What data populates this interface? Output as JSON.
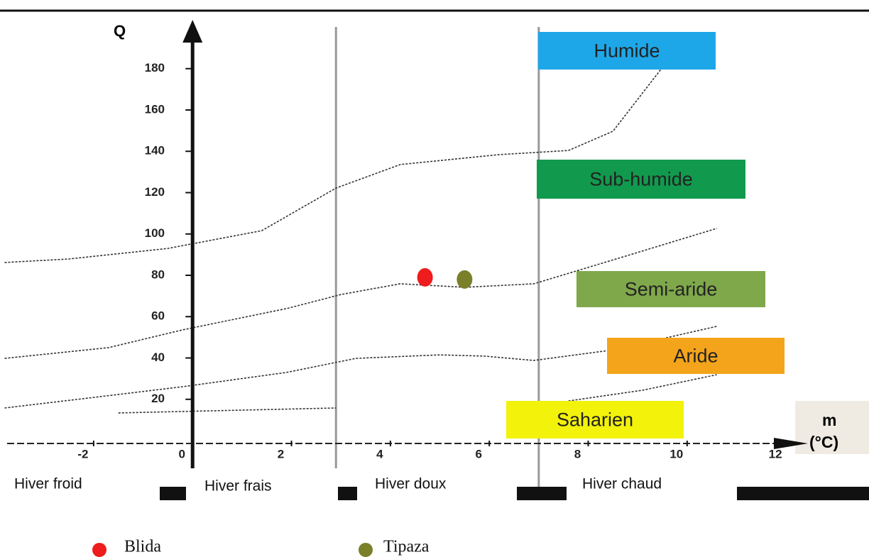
{
  "chart_data": {
    "type": "scatter",
    "ylabel": "Q",
    "xlabel": "m",
    "xunit": "(°C)",
    "xlim": [
      -3.75,
      12.4
    ],
    "ylim": [
      0,
      200
    ],
    "xticks": [
      -2,
      0,
      2,
      4,
      6,
      8,
      10,
      12
    ],
    "yticks": [
      20,
      40,
      60,
      80,
      100,
      120,
      140,
      160,
      180
    ],
    "series": [
      {
        "name": "Blida",
        "color": "#ee1c1c",
        "x": [
          4.7
        ],
        "values": [
          79
        ]
      },
      {
        "name": "Tipaza",
        "color": "#7a7f2a",
        "x": [
          5.5
        ],
        "values": [
          78
        ]
      }
    ],
    "boundaries": [
      {
        "x": [
          -3.8,
          -2.5,
          -0.5,
          1.4,
          2.9,
          4.2,
          6.2,
          7.6,
          8.5,
          9.5
        ],
        "y": [
          86.2,
          87.9,
          93.0,
          101.6,
          122.2,
          133.6,
          138.4,
          140.4,
          149.7,
          180.6
        ]
      },
      {
        "x": [
          -3.8,
          -1.7,
          -0.2,
          1.9,
          3.0,
          4.2,
          5.5,
          6.9,
          8.8,
          10.6
        ],
        "y": [
          39.8,
          45.0,
          53.6,
          63.9,
          70.7,
          75.9,
          74.2,
          75.9,
          89.6,
          102.7
        ]
      },
      {
        "x": [
          -3.8,
          -2.0,
          -0.2,
          1.9,
          3.3,
          5.0,
          5.9,
          6.9,
          8.5,
          10.6
        ],
        "y": [
          15.8,
          20.9,
          26.1,
          33.0,
          39.8,
          41.5,
          40.9,
          38.8,
          43.9,
          55.3
        ]
      },
      {
        "x": [
          7.6,
          9.1,
          10.6
        ],
        "y": [
          19.2,
          24.4,
          31.9
        ]
      },
      {
        "x": [
          -1.5,
          2.9
        ],
        "y": [
          13.4,
          15.8
        ]
      }
    ],
    "dividers": [
      2.9,
      7
    ],
    "zones": [
      {
        "label": "Humide",
        "color": "#1ea7e8"
      },
      {
        "label": "Sub-humide",
        "color": "#119a4e"
      },
      {
        "label": "Semi-aride",
        "color": "#7fa84b"
      },
      {
        "label": "Aride",
        "color": "#f4a41b"
      },
      {
        "label": "Saharien",
        "color": "#f2f20a"
      }
    ],
    "winters": [
      "Hiver froid",
      "Hiver frais",
      "Hiver doux",
      "Hiver chaud"
    ]
  }
}
